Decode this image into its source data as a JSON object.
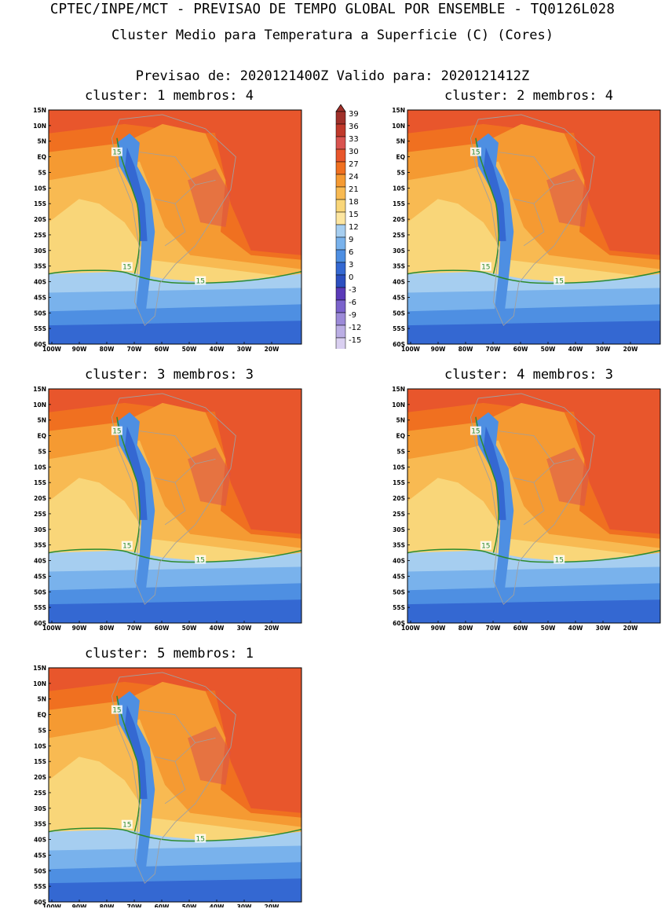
{
  "header": {
    "line1": "CPTEC/INPE/MCT - PREVISAO DE TEMPO GLOBAL POR ENSEMBLE - TQ0126L028",
    "line2": "Cluster Medio para Temperatura a Superficie (C) (Cores)",
    "line3": "Previsao de: 2020121400Z   Valido para: 2020121412Z"
  },
  "axes": {
    "lat_labels": [
      "15N",
      "10N",
      "5N",
      "EQ",
      "5S",
      "10S",
      "15S",
      "20S",
      "25S",
      "30S",
      "35S",
      "40S",
      "45S",
      "50S",
      "55S",
      "60S"
    ],
    "lon_labels": [
      "100W",
      "90W",
      "80W",
      "70W",
      "60W",
      "50W",
      "40W",
      "30W",
      "20W"
    ]
  },
  "colorbar": {
    "labels": [
      "39",
      "36",
      "33",
      "30",
      "27",
      "24",
      "21",
      "18",
      "15",
      "12",
      "9",
      "6",
      "3",
      "0",
      "-3",
      "-6",
      "-9",
      "-12",
      "-15"
    ],
    "colors": [
      "#a0302a",
      "#c0392b",
      "#d9534f",
      "#e8562c",
      "#f07020",
      "#f59a32",
      "#f8ba52",
      "#f9d679",
      "#fde6a0",
      "#a6cef0",
      "#79b2ec",
      "#4e8fe2",
      "#3468d2",
      "#2c4fc0",
      "#5a3ab8",
      "#7b63cc",
      "#9c8ad8",
      "#bbaee4",
      "#d9cff0"
    ]
  },
  "contour_label": "15",
  "panels": [
    {
      "title": "cluster: 1   membros: 4"
    },
    {
      "title": "cluster: 2   membros: 4"
    },
    {
      "title": "cluster: 3   membros: 3"
    },
    {
      "title": "cluster: 4   membros: 3"
    },
    {
      "title": "cluster: 5   membros: 1"
    }
  ]
}
